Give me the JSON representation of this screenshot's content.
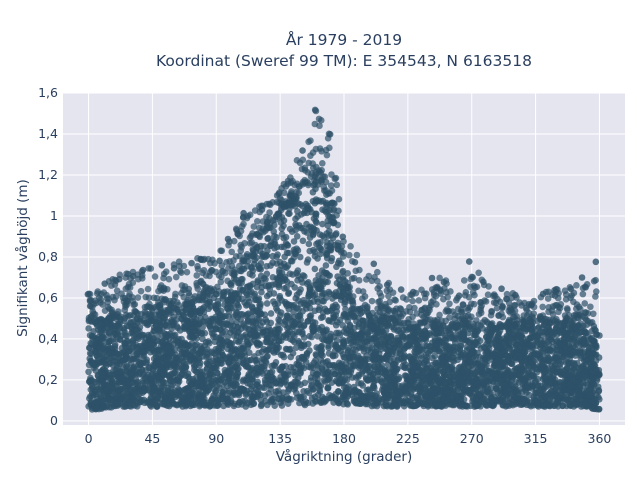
{
  "chart_data": {
    "type": "scatter",
    "title_lines": [
      "År 1979 - 2019",
      "Koordinat (Sweref 99 TM): E 354543, N 6163518"
    ],
    "xlabel": "Vågriktning (grader)",
    "ylabel": "Signifikant våghöjd (m)",
    "xlim": [
      -18,
      378
    ],
    "ylim": [
      -0.02,
      1.6
    ],
    "x_ticks": [
      0,
      45,
      90,
      135,
      180,
      225,
      270,
      315,
      360
    ],
    "x_tick_labels": [
      "0",
      "45",
      "90",
      "135",
      "180",
      "225",
      "270",
      "315",
      "360"
    ],
    "y_ticks": [
      0,
      0.2,
      0.4,
      0.6,
      0.8,
      1.0,
      1.2,
      1.4,
      1.6
    ],
    "y_tick_labels": [
      "0",
      "0,2",
      "0,4",
      "0,6",
      "0,8",
      "1",
      "1,2",
      "1,4",
      "1,6"
    ],
    "grid": true,
    "marker_color": "#2e5168",
    "background_color": "#e5e5f0",
    "envelope": {
      "direction": [
        0,
        10,
        20,
        30,
        40,
        50,
        60,
        70,
        80,
        90,
        100,
        110,
        120,
        130,
        140,
        150,
        160,
        170,
        180,
        190,
        200,
        210,
        220,
        230,
        240,
        250,
        260,
        270,
        280,
        290,
        300,
        310,
        320,
        330,
        340,
        350,
        360
      ],
      "max_height": [
        0.62,
        0.68,
        0.72,
        0.73,
        0.74,
        0.76,
        0.77,
        0.79,
        0.8,
        0.8,
        0.9,
        1.02,
        1.05,
        1.08,
        1.18,
        1.32,
        1.53,
        1.4,
        0.92,
        0.8,
        0.77,
        0.68,
        0.65,
        0.63,
        0.7,
        0.7,
        0.63,
        0.79,
        0.68,
        0.65,
        0.62,
        0.58,
        0.63,
        0.65,
        0.66,
        0.7,
        0.79
      ],
      "min_height": [
        0.05,
        0.06,
        0.07,
        0.07,
        0.07,
        0.07,
        0.07,
        0.07,
        0.07,
        0.07,
        0.07,
        0.07,
        0.07,
        0.07,
        0.07,
        0.07,
        0.08,
        0.09,
        0.08,
        0.08,
        0.07,
        0.07,
        0.07,
        0.07,
        0.07,
        0.07,
        0.07,
        0.07,
        0.07,
        0.07,
        0.07,
        0.07,
        0.07,
        0.07,
        0.07,
        0.07,
        0.05
      ],
      "dense_upper": [
        0.48,
        0.5,
        0.52,
        0.52,
        0.52,
        0.53,
        0.55,
        0.57,
        0.6,
        0.62,
        0.68,
        0.78,
        0.88,
        0.98,
        1.05,
        1.12,
        1.18,
        1.1,
        0.68,
        0.55,
        0.5,
        0.48,
        0.47,
        0.46,
        0.46,
        0.47,
        0.47,
        0.47,
        0.47,
        0.47,
        0.47,
        0.46,
        0.47,
        0.47,
        0.47,
        0.47,
        0.47
      ]
    }
  }
}
